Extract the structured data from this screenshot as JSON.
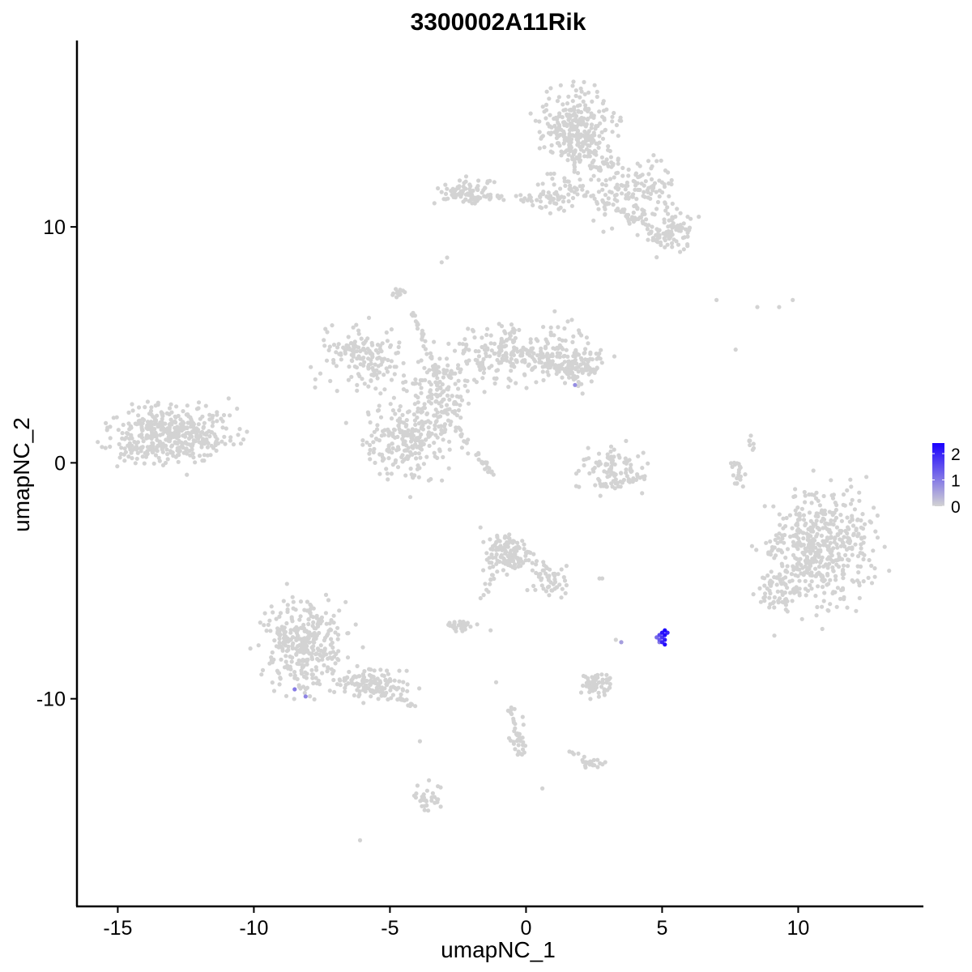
{
  "chart_data": {
    "type": "scatter",
    "title": "3300002A11Rik",
    "xlabel": "umapNC_1",
    "ylabel": "umapNC_2",
    "xlim": [
      -16.5,
      14.6
    ],
    "ylim": [
      -18.8,
      17.9
    ],
    "x_ticks": [
      -15,
      -10,
      -5,
      0,
      5,
      10
    ],
    "x_tick_labels": [
      "-15",
      "-10",
      "-5",
      "0",
      "5",
      "10"
    ],
    "y_ticks": [
      -10,
      0,
      10
    ],
    "y_tick_labels": [
      "-10",
      "0",
      "10"
    ],
    "grid": false,
    "legend_position": "right",
    "colorbar": {
      "min": 0,
      "max": 2.4,
      "ticks": [
        0,
        1,
        2
      ],
      "tick_labels": [
        "0",
        "1",
        "2"
      ],
      "low_color": "#d3d3d3",
      "high_color": "#1a00ff"
    },
    "clusters": [
      {
        "cx": -13.4,
        "cy": 1.1,
        "sx": 1.25,
        "sy": 0.85,
        "n": 300
      },
      {
        "cx": -12.0,
        "cy": 1.3,
        "sx": 0.9,
        "sy": 0.7,
        "n": 110
      },
      {
        "cx": -6.0,
        "cy": 4.5,
        "sx": 1.3,
        "sy": 0.9,
        "n": 160
      },
      {
        "cx": -4.4,
        "cy": 0.9,
        "sx": 1.1,
        "sy": 1.1,
        "n": 230
      },
      {
        "cx": -3.2,
        "cy": 2.8,
        "sx": 0.7,
        "sy": 1.0,
        "n": 130
      },
      {
        "cx": -1.3,
        "cy": 4.6,
        "sx": 1.1,
        "sy": 0.8,
        "n": 140
      },
      {
        "cx": 1.0,
        "cy": 4.6,
        "sx": 1.1,
        "sy": 0.85,
        "n": 150
      },
      {
        "cx": 1.9,
        "cy": 4.0,
        "sx": 0.6,
        "sy": 0.5,
        "n": 70
      },
      {
        "cx": 1.9,
        "cy": 14.1,
        "sx": 0.9,
        "sy": 1.3,
        "n": 320
      },
      {
        "cx": 3.8,
        "cy": 11.5,
        "sx": 1.1,
        "sy": 1.0,
        "n": 160
      },
      {
        "cx": 5.2,
        "cy": 9.8,
        "sx": 0.7,
        "sy": 0.6,
        "n": 90
      },
      {
        "cx": -2.2,
        "cy": 11.5,
        "sx": 0.7,
        "sy": 0.35,
        "n": 80
      },
      {
        "cx": 0.9,
        "cy": 11.3,
        "sx": 0.7,
        "sy": 0.4,
        "n": 50
      },
      {
        "cx": 3.2,
        "cy": -0.2,
        "sx": 0.8,
        "sy": 0.7,
        "n": 90
      },
      {
        "cx": 10.9,
        "cy": -3.6,
        "sx": 1.3,
        "sy": 1.6,
        "n": 480
      },
      {
        "cx": 9.2,
        "cy": -5.5,
        "sx": 0.6,
        "sy": 0.8,
        "n": 60
      },
      {
        "cx": -8.2,
        "cy": -7.8,
        "sx": 1.0,
        "sy": 1.3,
        "n": 330
      },
      {
        "cx": -5.6,
        "cy": -9.4,
        "sx": 0.9,
        "sy": 0.45,
        "n": 120
      },
      {
        "cx": -0.7,
        "cy": -3.8,
        "sx": 0.6,
        "sy": 0.6,
        "n": 130
      },
      {
        "cx": 0.8,
        "cy": -4.9,
        "sx": 0.5,
        "sy": 0.7,
        "n": 50
      },
      {
        "cx": -2.4,
        "cy": -6.9,
        "sx": 0.35,
        "sy": 0.2,
        "n": 30
      },
      {
        "cx": 2.6,
        "cy": -9.4,
        "sx": 0.45,
        "sy": 0.35,
        "n": 60
      },
      {
        "cx": -3.6,
        "cy": -14.1,
        "sx": 0.3,
        "sy": 0.5,
        "n": 30
      },
      {
        "cx": -0.3,
        "cy": -11.6,
        "sx": 0.25,
        "sy": 0.6,
        "n": 25
      },
      {
        "cx": 2.4,
        "cy": -12.7,
        "sx": 0.3,
        "sy": 0.15,
        "n": 12
      },
      {
        "cx": 7.8,
        "cy": -0.4,
        "sx": 0.2,
        "sy": 0.5,
        "n": 20
      },
      {
        "cx": 8.3,
        "cy": 0.8,
        "sx": 0.1,
        "sy": 0.3,
        "n": 8
      },
      {
        "cx": -4.7,
        "cy": 7.2,
        "sx": 0.15,
        "sy": 0.2,
        "n": 12
      }
    ],
    "strands": [
      {
        "x1": -4.2,
        "y1": 6.5,
        "x2": -3.3,
        "y2": 3.8,
        "n": 30
      },
      {
        "x1": -2.6,
        "y1": 1.5,
        "x2": -1.2,
        "y2": -0.5,
        "n": 30
      },
      {
        "x1": -0.2,
        "y1": 5.0,
        "x2": 1.9,
        "y2": 3.6,
        "n": 30
      },
      {
        "x1": -2.6,
        "y1": 11.3,
        "x2": 1.4,
        "y2": 11.2,
        "n": 35
      },
      {
        "x1": 1.4,
        "y1": 11.8,
        "x2": 5.5,
        "y2": 9.5,
        "n": 40
      },
      {
        "x1": 2.7,
        "y1": -1.0,
        "x2": 4.4,
        "y2": -0.6,
        "n": 25
      },
      {
        "x1": 1.6,
        "y1": -12.2,
        "x2": 2.5,
        "y2": -12.8,
        "n": 15
      },
      {
        "x1": -0.6,
        "y1": -10.4,
        "x2": -0.1,
        "y2": -12.4,
        "n": 15
      },
      {
        "x1": -1.2,
        "y1": -4.4,
        "x2": -1.6,
        "y2": -5.9,
        "n": 12
      },
      {
        "x1": -7.2,
        "y1": -9.0,
        "x2": -4.0,
        "y2": -10.3,
        "n": 35
      }
    ],
    "sparse_points": [
      {
        "x": 7.0,
        "y": 6.9,
        "value": 0
      },
      {
        "x": 8.5,
        "y": 6.6,
        "value": 0
      },
      {
        "x": 9.3,
        "y": 6.6,
        "value": 0
      },
      {
        "x": 9.8,
        "y": 6.9,
        "value": 0
      },
      {
        "x": 7.7,
        "y": 4.8,
        "value": 0
      },
      {
        "x": -2.9,
        "y": 8.7,
        "value": 0
      },
      {
        "x": -3.1,
        "y": 8.5,
        "value": 0
      },
      {
        "x": 2.7,
        "y": -4.9,
        "value": 0
      },
      {
        "x": 2.8,
        "y": -4.9,
        "value": 0
      },
      {
        "x": -1.3,
        "y": -7.1,
        "value": 0
      },
      {
        "x": -6.1,
        "y": -16.0,
        "value": 0
      },
      {
        "x": -3.9,
        "y": -11.8,
        "value": 0
      },
      {
        "x": 0.6,
        "y": -13.8,
        "value": 0
      },
      {
        "x": -1.1,
        "y": -9.3,
        "value": 0
      },
      {
        "x": 3.3,
        "y": -7.5,
        "value": 0
      },
      {
        "x": 3.5,
        "y": -7.6,
        "value": 0
      }
    ],
    "expressing_points": [
      {
        "x": 5.1,
        "y": -7.1,
        "value": 2.4
      },
      {
        "x": 5.1,
        "y": -7.3,
        "value": 2.3
      },
      {
        "x": 5.0,
        "y": -7.2,
        "value": 2.2
      },
      {
        "x": 5.1,
        "y": -7.5,
        "value": 2.1
      },
      {
        "x": 5.0,
        "y": -7.6,
        "value": 2.0
      },
      {
        "x": 5.1,
        "y": -7.7,
        "value": 2.3
      },
      {
        "x": 4.9,
        "y": -7.3,
        "value": 1.6
      },
      {
        "x": 4.8,
        "y": -7.4,
        "value": 1.2
      },
      {
        "x": 4.9,
        "y": -7.5,
        "value": 1.4
      },
      {
        "x": 5.0,
        "y": -7.4,
        "value": 1.8
      },
      {
        "x": 5.2,
        "y": -7.2,
        "value": 2.0
      },
      {
        "x": 4.9,
        "y": -7.6,
        "value": 1.0
      },
      {
        "x": 1.8,
        "y": 3.3,
        "value": 0.8
      },
      {
        "x": -8.5,
        "y": -9.6,
        "value": 1.0
      },
      {
        "x": -8.1,
        "y": -9.9,
        "value": 0.9
      },
      {
        "x": 3.5,
        "y": -7.6,
        "value": 0.6
      }
    ]
  }
}
